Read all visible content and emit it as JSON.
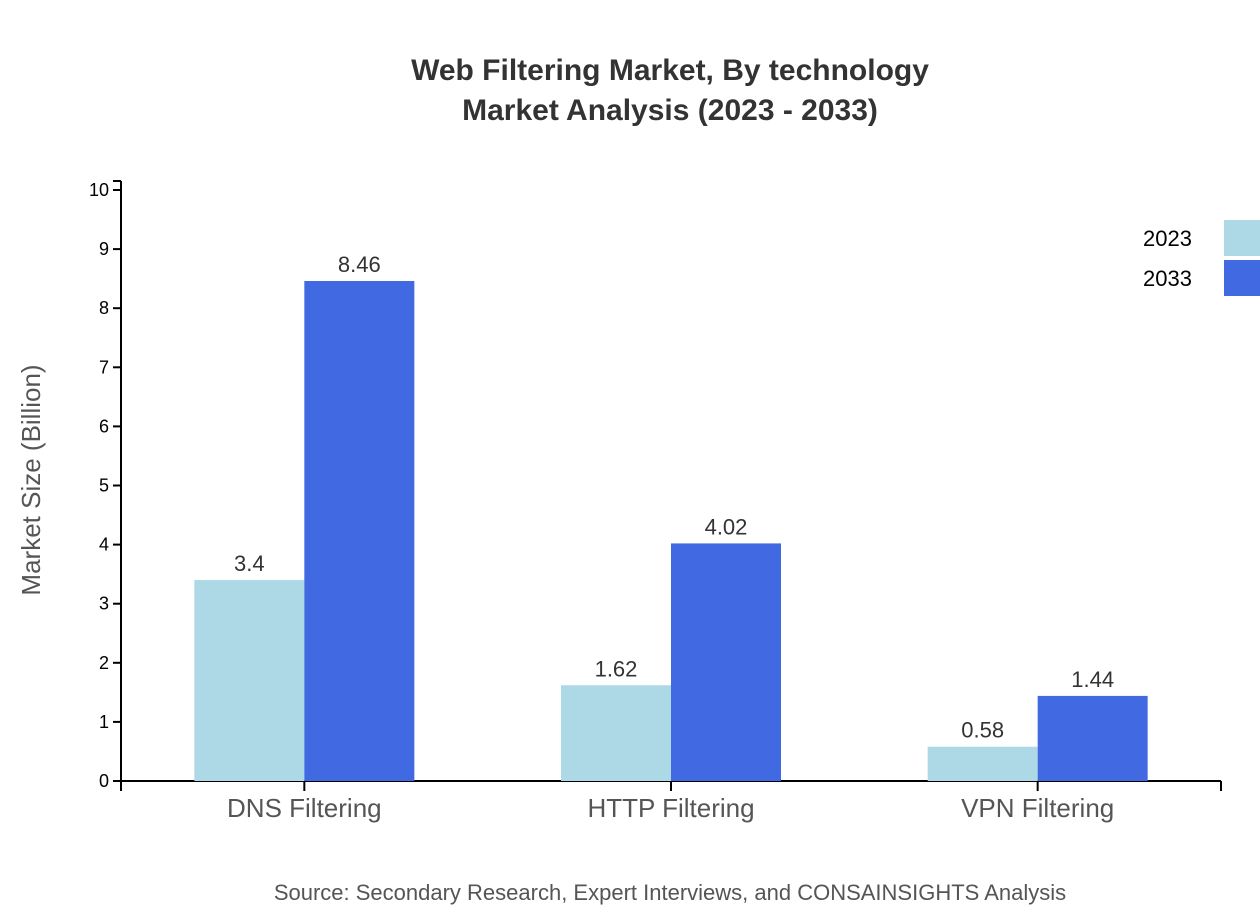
{
  "chart_data": {
    "type": "bar",
    "title": "Web Filtering Market, By technology",
    "subtitle": "Market Analysis (2023 - 2033)",
    "xlabel": "",
    "ylabel": "Market Size (Billion)",
    "ylim": [
      0,
      10
    ],
    "yticks": [
      0,
      1,
      2,
      3,
      4,
      5,
      6,
      7,
      8,
      9,
      10
    ],
    "grid": false,
    "legend_position": "top-right",
    "categories": [
      "DNS Filtering",
      "HTTP Filtering",
      "VPN Filtering"
    ],
    "series": [
      {
        "name": "2023",
        "color": "#add8e6",
        "values": [
          3.4,
          1.62,
          0.58
        ]
      },
      {
        "name": "2033",
        "color": "#4169e1",
        "values": [
          8.46,
          4.02,
          1.44
        ]
      }
    ],
    "source": "Source: Secondary Research, Expert Interviews, and CONSAINSIGHTS Analysis"
  }
}
